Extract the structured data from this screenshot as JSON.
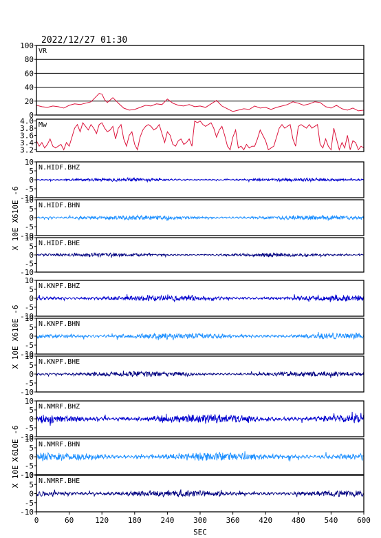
{
  "title": "2022/12/27 01:30",
  "xlabel": "SEC",
  "x_ticks": [
    "0",
    "60",
    "120",
    "180",
    "240",
    "300",
    "360",
    "420",
    "480",
    "540",
    "600"
  ],
  "ylabel_waveform": "X 10E -6",
  "colors": {
    "frame": "#000000",
    "vr": "#dc143c",
    "mw": "#dc143c",
    "bhz": "#0000cd",
    "bhn": "#1e90ff",
    "bhe": "#000080"
  },
  "chart_data": [
    {
      "id": "vr",
      "type": "line",
      "label": "VR",
      "xlim": [
        0,
        600
      ],
      "ylim": [
        0,
        100
      ],
      "y_ticks": [
        "0",
        "20",
        "40",
        "60",
        "80",
        "100"
      ],
      "grid": true,
      "x": [
        0,
        10,
        20,
        30,
        40,
        50,
        60,
        70,
        80,
        90,
        100,
        110,
        115,
        120,
        125,
        130,
        140,
        150,
        160,
        170,
        180,
        190,
        200,
        210,
        220,
        230,
        240,
        250,
        260,
        270,
        280,
        290,
        300,
        310,
        320,
        330,
        340,
        350,
        360,
        370,
        380,
        390,
        400,
        410,
        420,
        430,
        440,
        450,
        460,
        470,
        480,
        490,
        500,
        510,
        520,
        530,
        540,
        550,
        560,
        570,
        580,
        590,
        600
      ],
      "y": [
        14,
        12,
        11,
        13,
        12,
        10,
        14,
        16,
        15,
        17,
        19,
        27,
        31,
        30,
        22,
        18,
        25,
        17,
        10,
        7,
        8,
        11,
        14,
        13,
        16,
        15,
        23,
        17,
        14,
        13,
        15,
        12,
        13,
        11,
        16,
        21,
        13,
        9,
        5,
        7,
        9,
        8,
        13,
        10,
        11,
        8,
        11,
        13,
        15,
        19,
        17,
        14,
        16,
        19,
        18,
        12,
        10,
        14,
        9,
        7,
        10,
        6,
        7
      ]
    },
    {
      "id": "mw",
      "type": "line",
      "label": "Mw",
      "xlim": [
        0,
        600
      ],
      "ylim": [
        3.15,
        4.05
      ],
      "y_ticks": [
        "3.2",
        "3.4",
        "3.6",
        "3.8",
        "4.0"
      ],
      "grid": false,
      "x": [
        0,
        5,
        10,
        15,
        20,
        25,
        30,
        35,
        40,
        45,
        50,
        55,
        60,
        65,
        70,
        75,
        80,
        85,
        90,
        95,
        100,
        105,
        110,
        115,
        120,
        125,
        130,
        135,
        140,
        145,
        150,
        155,
        160,
        165,
        170,
        175,
        180,
        185,
        190,
        195,
        200,
        205,
        210,
        215,
        220,
        225,
        230,
        235,
        240,
        245,
        250,
        255,
        260,
        265,
        270,
        275,
        280,
        285,
        290,
        295,
        300,
        305,
        310,
        315,
        320,
        325,
        330,
        335,
        340,
        345,
        350,
        355,
        360,
        365,
        370,
        375,
        380,
        385,
        390,
        395,
        400,
        405,
        410,
        415,
        420,
        425,
        430,
        435,
        440,
        445,
        450,
        455,
        460,
        465,
        470,
        475,
        480,
        485,
        490,
        495,
        500,
        505,
        510,
        515,
        520,
        525,
        530,
        535,
        540,
        545,
        550,
        555,
        560,
        565,
        570,
        575,
        580,
        585,
        590,
        595,
        600
      ],
      "y": [
        3.45,
        3.3,
        3.4,
        3.25,
        3.35,
        3.5,
        3.3,
        3.25,
        3.3,
        3.35,
        3.2,
        3.4,
        3.3,
        3.55,
        3.8,
        3.9,
        3.7,
        3.95,
        3.85,
        3.75,
        3.9,
        3.8,
        3.65,
        3.9,
        3.95,
        3.8,
        3.7,
        3.75,
        3.85,
        3.5,
        3.8,
        3.9,
        3.5,
        3.3,
        3.6,
        3.7,
        3.35,
        3.2,
        3.55,
        3.75,
        3.85,
        3.9,
        3.85,
        3.75,
        3.8,
        3.9,
        3.65,
        3.4,
        3.7,
        3.6,
        3.35,
        3.3,
        3.45,
        3.5,
        3.35,
        3.4,
        3.5,
        3.3,
        4.0,
        3.95,
        4.0,
        3.9,
        3.85,
        3.9,
        3.95,
        3.8,
        3.55,
        3.75,
        3.85,
        3.6,
        3.3,
        3.2,
        3.55,
        3.75,
        3.25,
        3.3,
        3.2,
        3.35,
        3.25,
        3.3,
        3.3,
        3.5,
        3.75,
        3.6,
        3.45,
        3.2,
        3.25,
        3.3,
        3.55,
        3.8,
        3.9,
        3.8,
        3.85,
        3.9,
        3.5,
        3.3,
        3.85,
        3.9,
        3.85,
        3.8,
        3.9,
        3.8,
        3.85,
        3.9,
        3.35,
        3.25,
        3.5,
        3.3,
        3.2,
        3.8,
        3.5,
        3.2,
        3.4,
        3.25,
        3.6,
        3.2,
        3.45,
        3.4,
        3.2,
        3.3,
        3.25
      ]
    },
    {
      "id": "n-hidf-bhz",
      "type": "line",
      "label": "N.HIDF.BHZ",
      "component": "bhz",
      "xlim": [
        0,
        600
      ],
      "ylim": [
        -10,
        10
      ],
      "y_ticks": [
        "-10",
        "-5",
        "0",
        "5",
        "10"
      ],
      "amplitude": 0.5,
      "seed": 11
    },
    {
      "id": "n-hidf-bhn",
      "type": "line",
      "label": "N.HIDF.BHN",
      "component": "bhn",
      "xlim": [
        0,
        600
      ],
      "ylim": [
        -10,
        10
      ],
      "y_ticks": [
        "-10",
        "-5",
        "0",
        "5",
        "10"
      ],
      "amplitude": 0.7,
      "seed": 23
    },
    {
      "id": "n-hidf-bhe",
      "type": "line",
      "label": "N.HIDF.BHE",
      "component": "bhe",
      "xlim": [
        0,
        600
      ],
      "ylim": [
        -10,
        10
      ],
      "y_ticks": [
        "-10",
        "-5",
        "0",
        "5",
        "10"
      ],
      "amplitude": 0.6,
      "seed": 37
    },
    {
      "id": "n-knpf-bhz",
      "type": "line",
      "label": "N.KNPF.BHZ",
      "component": "bhz",
      "xlim": [
        0,
        600
      ],
      "ylim": [
        -10,
        10
      ],
      "y_ticks": [
        "-10",
        "-5",
        "0",
        "5",
        "10"
      ],
      "amplitude": 0.9,
      "seed": 41
    },
    {
      "id": "n-knpf-bhn",
      "type": "line",
      "label": "N.KNPF.BHN",
      "component": "bhn",
      "xlim": [
        0,
        600
      ],
      "ylim": [
        -10,
        10
      ],
      "y_ticks": [
        "-10",
        "-5",
        "0",
        "5",
        "10"
      ],
      "amplitude": 1.0,
      "seed": 53
    },
    {
      "id": "n-knpf-bhe",
      "type": "line",
      "label": "N.KNPF.BHE",
      "component": "bhe",
      "xlim": [
        0,
        600
      ],
      "ylim": [
        -10,
        10
      ],
      "y_ticks": [
        "-10",
        "-5",
        "0",
        "5",
        "10"
      ],
      "amplitude": 0.8,
      "seed": 67
    },
    {
      "id": "n-nmrf-bhz",
      "type": "line",
      "label": "N.NMRF.BHZ",
      "component": "bhz",
      "xlim": [
        0,
        600
      ],
      "ylim": [
        -10,
        10
      ],
      "y_ticks": [
        "-10",
        "-5",
        "0",
        "5",
        "10"
      ],
      "amplitude": 1.4,
      "seed": 71
    },
    {
      "id": "n-nmrf-bhn",
      "type": "line",
      "label": "N.NMRF.BHN",
      "component": "bhn",
      "xlim": [
        0,
        600
      ],
      "ylim": [
        -10,
        10
      ],
      "y_ticks": [
        "-10",
        "-5",
        "0",
        "5",
        "10"
      ],
      "amplitude": 1.3,
      "seed": 83
    },
    {
      "id": "n-nmrf-bhe",
      "type": "line",
      "label": "N.NMRF.BHE",
      "component": "bhe",
      "xlim": [
        0,
        600
      ],
      "ylim": [
        -10,
        10
      ],
      "y_ticks": [
        "-10",
        "-5",
        "0",
        "5",
        "10"
      ],
      "amplitude": 1.0,
      "seed": 97
    }
  ]
}
